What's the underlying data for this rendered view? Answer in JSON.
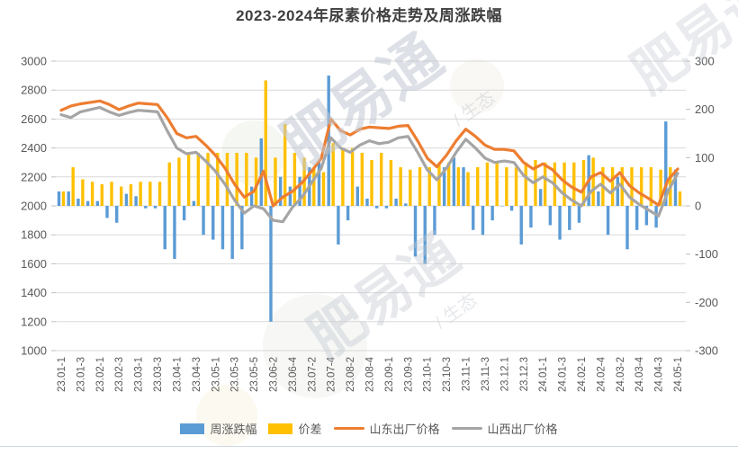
{
  "title": "2023-2024年尿素价格走势及周涨跌幅",
  "watermark": {
    "brand": "肥易通",
    "slash": "/",
    "subtext": "生态"
  },
  "legend": [
    {
      "label": "周涨跌幅",
      "type": "bar",
      "color": "#5B9BD5"
    },
    {
      "label": "价差",
      "type": "bar",
      "color": "#FFC000"
    },
    {
      "label": "山东出厂价格",
      "type": "line",
      "color": "#ED7D31"
    },
    {
      "label": "山西出厂价格",
      "type": "line",
      "color": "#A5A5A5"
    }
  ],
  "colors": {
    "grid": "#d9d9d9",
    "tick": "#bfbfbf",
    "axis_text": "#595959",
    "title_text": "#3f3f3f"
  },
  "chart_data": {
    "type": "bar",
    "subtype": "combo-bar-line",
    "title": "2023-2024年尿素价格走势及周涨跌幅",
    "xlabel": "",
    "ylabel_left": "",
    "ylabel_right": "",
    "grid": true,
    "legend_position": "bottom",
    "n_points": 65,
    "label_every": 2,
    "x_labels_visible": [
      "23.01-1",
      "23.01-3",
      "23.02-1",
      "23.02-3",
      "23.03-1",
      "23.03-3",
      "23.04-1",
      "23.04-3",
      "23.05-1",
      "23.05-3",
      "23.05-5",
      "23.06-2",
      "23.06-4",
      "23.07-2",
      "23.07-4",
      "23.08-2",
      "23.08-4",
      "23.09-1",
      "23.09-3",
      "23.10-1",
      "23.10-3",
      "23.11-1",
      "23.11-3",
      "23.12.1",
      "23.12.3",
      "24.01-1",
      "24.01-3",
      "24.02-1",
      "24.02-4",
      "24.03-2",
      "24.03-4",
      "24.04-3",
      "24.05-1"
    ],
    "left_axis": {
      "min": 1000,
      "max": 3000,
      "step": 200
    },
    "right_axis": {
      "min": -300,
      "max": 300,
      "step": 100
    },
    "series": [
      {
        "name": "周涨跌幅",
        "type": "bar",
        "axis": "right",
        "color": "#5B9BD5",
        "values": [
          30,
          30,
          15,
          10,
          10,
          -25,
          -35,
          25,
          20,
          -5,
          -5,
          -90,
          -110,
          -30,
          10,
          -60,
          -70,
          -90,
          -110,
          -90,
          40,
          140,
          -240,
          60,
          40,
          60,
          80,
          90,
          270,
          -80,
          -30,
          40,
          15,
          -5,
          -5,
          15,
          5,
          -105,
          -120,
          -60,
          80,
          100,
          80,
          -50,
          -60,
          -30,
          0,
          -10,
          -80,
          -45,
          35,
          -40,
          -70,
          -50,
          -35,
          105,
          30,
          -60,
          60,
          -90,
          -50,
          -40,
          -45,
          175,
          75
        ]
      },
      {
        "name": "价差",
        "type": "bar",
        "axis": "right",
        "color": "#FFC000",
        "values": [
          30,
          80,
          55,
          50,
          45,
          50,
          40,
          45,
          50,
          50,
          50,
          90,
          100,
          110,
          110,
          110,
          110,
          110,
          110,
          110,
          100,
          260,
          100,
          170,
          110,
          100,
          80,
          70,
          130,
          120,
          120,
          110,
          95,
          110,
          95,
          80,
          75,
          80,
          80,
          90,
          90,
          80,
          70,
          80,
          90,
          90,
          80,
          80,
          90,
          95,
          90,
          90,
          90,
          90,
          95,
          100,
          80,
          80,
          80,
          80,
          80,
          80,
          75,
          80,
          30
        ]
      },
      {
        "name": "山东出厂价格",
        "type": "line",
        "axis": "left",
        "color": "#ED7D31",
        "values": [
          2660,
          2690,
          2705,
          2715,
          2725,
          2700,
          2665,
          2690,
          2710,
          2705,
          2700,
          2610,
          2500,
          2470,
          2480,
          2420,
          2350,
          2260,
          2150,
          2060,
          2100,
          2240,
          2000,
          2060,
          2100,
          2160,
          2240,
          2330,
          2600,
          2520,
          2490,
          2530,
          2545,
          2540,
          2535,
          2550,
          2555,
          2450,
          2330,
          2270,
          2350,
          2450,
          2530,
          2480,
          2420,
          2390,
          2390,
          2380,
          2300,
          2255,
          2290,
          2250,
          2180,
          2130,
          2095,
          2200,
          2230,
          2170,
          2230,
          2140,
          2090,
          2050,
          2005,
          2180,
          2255
        ]
      },
      {
        "name": "山西出厂价格",
        "type": "line",
        "axis": "left",
        "color": "#A5A5A5",
        "values": [
          2630,
          2610,
          2650,
          2665,
          2680,
          2650,
          2625,
          2645,
          2660,
          2655,
          2650,
          2520,
          2400,
          2360,
          2370,
          2310,
          2240,
          2150,
          2040,
          1950,
          2000,
          1980,
          1900,
          1890,
          1990,
          2060,
          2160,
          2260,
          2470,
          2400,
          2370,
          2420,
          2450,
          2430,
          2440,
          2470,
          2480,
          2370,
          2250,
          2180,
          2260,
          2370,
          2460,
          2400,
          2330,
          2300,
          2310,
          2300,
          2210,
          2160,
          2200,
          2160,
          2090,
          2040,
          2000,
          2100,
          2150,
          2090,
          2150,
          2060,
          2010,
          1970,
          1930,
          2100,
          2225
        ]
      }
    ]
  }
}
